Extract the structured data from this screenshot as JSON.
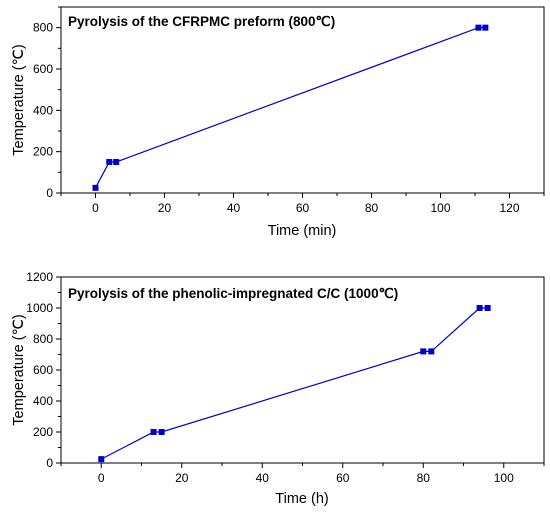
{
  "chart_data": [
    {
      "type": "line",
      "title": "Pyrolysis of  the CFRPMC preform (800℃)",
      "xlabel": "Time (min)",
      "ylabel": "Temperature (℃)",
      "xlim": [
        -10,
        130
      ],
      "ylim": [
        0,
        900
      ],
      "xticks": [
        0,
        20,
        40,
        60,
        80,
        100,
        120
      ],
      "yticks": [
        0,
        200,
        400,
        600,
        800
      ],
      "grid": false,
      "series": [
        {
          "color": "#0000cc",
          "x": [
            0,
            4,
            6,
            111,
            113
          ],
          "y": [
            25,
            150,
            150,
            800,
            800
          ]
        }
      ]
    },
    {
      "type": "line",
      "title": "Pyrolysis of  the phenolic-impregnated C/C (1000℃)",
      "xlabel": "Time (h)",
      "ylabel": "Temperature (℃)",
      "xlim": [
        -10,
        110
      ],
      "ylim": [
        0,
        1200
      ],
      "xticks": [
        0,
        20,
        40,
        60,
        80,
        100
      ],
      "yticks": [
        0,
        200,
        400,
        600,
        800,
        1000,
        1200
      ],
      "grid": false,
      "series": [
        {
          "color": "#0000cc",
          "x": [
            0,
            13,
            15,
            80,
            82,
            94,
            96
          ],
          "y": [
            25,
            200,
            200,
            720,
            720,
            1000,
            1000
          ]
        }
      ]
    }
  ]
}
